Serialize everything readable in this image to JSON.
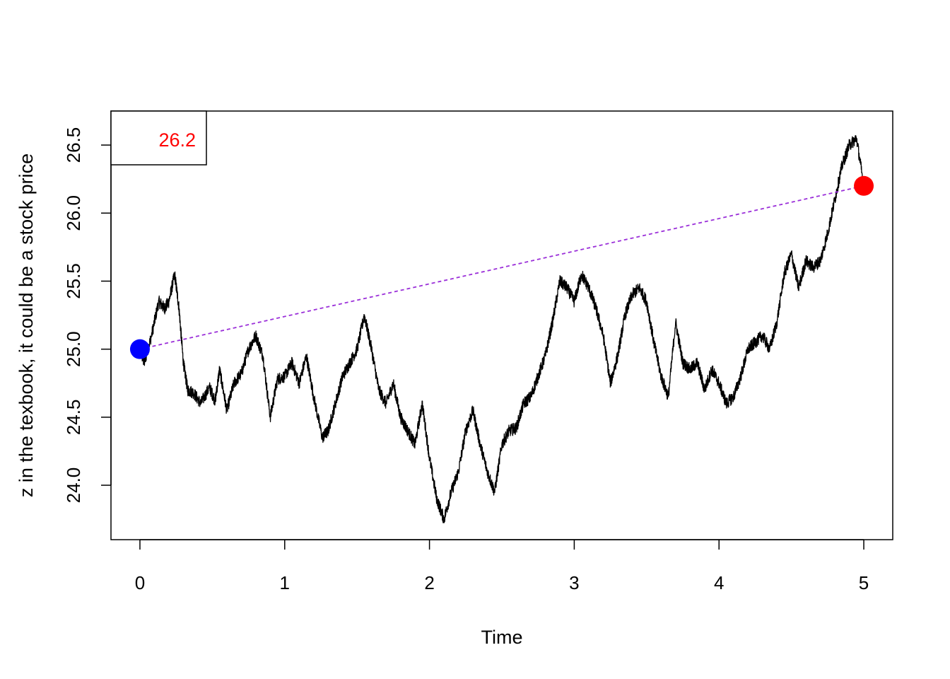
{
  "chart_data": {
    "type": "line",
    "xlabel": "Time",
    "ylabel": "z in the texbook, it could be a stock price",
    "xlim": [
      -0.2,
      5.2
    ],
    "ylim": [
      23.6,
      26.75
    ],
    "x_ticks": [
      0,
      1,
      2,
      3,
      4,
      5
    ],
    "y_ticks": [
      24.0,
      24.5,
      25.0,
      25.5,
      26.0,
      26.5
    ],
    "y_tick_labels": [
      "24.0",
      "24.5",
      "25.0",
      "25.5",
      "26.0",
      "26.5"
    ],
    "grid": false,
    "legend": {
      "position": "top-left",
      "text": "26.2",
      "color": "#ff0000"
    },
    "path_keypoints": {
      "x": [
        0,
        0.03,
        0.08,
        0.13,
        0.17,
        0.2,
        0.24,
        0.27,
        0.3,
        0.33,
        0.37,
        0.42,
        0.48,
        0.52,
        0.55,
        0.6,
        0.65,
        0.7,
        0.75,
        0.8,
        0.85,
        0.9,
        0.95,
        1.0,
        1.05,
        1.1,
        1.15,
        1.2,
        1.26,
        1.3,
        1.35,
        1.4,
        1.45,
        1.5,
        1.55,
        1.6,
        1.65,
        1.7,
        1.75,
        1.8,
        1.85,
        1.9,
        1.95,
        2.0,
        2.05,
        2.1,
        2.15,
        2.2,
        2.25,
        2.3,
        2.35,
        2.4,
        2.45,
        2.5,
        2.55,
        2.6,
        2.65,
        2.7,
        2.75,
        2.8,
        2.85,
        2.9,
        2.95,
        3.0,
        3.05,
        3.1,
        3.15,
        3.2,
        3.25,
        3.3,
        3.35,
        3.4,
        3.45,
        3.5,
        3.55,
        3.6,
        3.65,
        3.7,
        3.75,
        3.8,
        3.85,
        3.9,
        3.95,
        4.0,
        4.05,
        4.1,
        4.15,
        4.2,
        4.25,
        4.3,
        4.35,
        4.4,
        4.45,
        4.5,
        4.55,
        4.6,
        4.65,
        4.7,
        4.75,
        4.8,
        4.85,
        4.9,
        4.95,
        5.0
      ],
      "y": [
        25.0,
        24.9,
        25.1,
        25.35,
        25.3,
        25.35,
        25.55,
        25.3,
        24.9,
        24.7,
        24.68,
        24.6,
        24.72,
        24.62,
        24.85,
        24.55,
        24.75,
        24.82,
        25.0,
        25.1,
        24.95,
        24.5,
        24.78,
        24.8,
        24.9,
        24.75,
        24.95,
        24.65,
        24.35,
        24.4,
        24.6,
        24.8,
        24.9,
        25.0,
        25.25,
        25.0,
        24.7,
        24.6,
        24.75,
        24.5,
        24.4,
        24.3,
        24.6,
        24.2,
        23.9,
        23.75,
        23.95,
        24.1,
        24.4,
        24.55,
        24.3,
        24.1,
        23.95,
        24.3,
        24.4,
        24.42,
        24.6,
        24.65,
        24.8,
        24.95,
        25.2,
        25.5,
        25.45,
        25.35,
        25.55,
        25.45,
        25.3,
        25.1,
        24.75,
        24.95,
        25.25,
        25.4,
        25.45,
        25.35,
        25.05,
        24.8,
        24.65,
        25.2,
        24.9,
        24.85,
        24.9,
        24.7,
        24.85,
        24.75,
        24.6,
        24.65,
        24.8,
        25.0,
        25.05,
        25.1,
        25.0,
        25.2,
        25.55,
        25.7,
        25.45,
        25.65,
        25.6,
        25.65,
        25.85,
        26.1,
        26.35,
        26.5,
        26.55,
        26.2
      ]
    },
    "start_point": {
      "x": 0,
      "y": 25.0,
      "color": "#0000ff"
    },
    "end_point": {
      "x": 5,
      "y": 26.2,
      "color": "#ff0000"
    },
    "trend_line": {
      "from": [
        0,
        25.0
      ],
      "to": [
        5,
        26.2
      ],
      "color": "#9b30d9",
      "style": "dashed"
    }
  }
}
